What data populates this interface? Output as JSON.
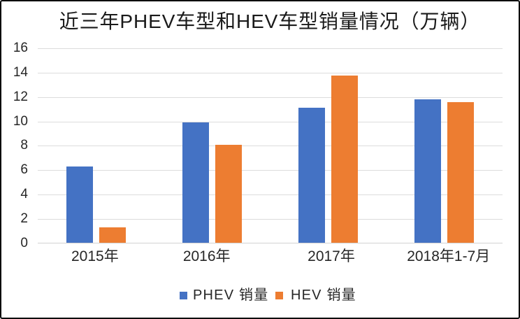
{
  "chart_data": {
    "type": "bar",
    "title": "近三年PHEV车型和HEV车型销量情况（万辆）",
    "categories": [
      "2015年",
      "2016年",
      "2017年",
      "2018年1-7月"
    ],
    "series": [
      {
        "name": "PHEV 销量",
        "color": "#4472c4",
        "values": [
          6.3,
          9.9,
          11.1,
          11.8
        ]
      },
      {
        "name": "HEV 销量",
        "color": "#ed7d31",
        "values": [
          1.3,
          8.1,
          13.8,
          11.6
        ]
      }
    ],
    "ylim": [
      0,
      16
    ],
    "ytick_step": 2,
    "ytick_labels": [
      "0",
      "2",
      "4",
      "6",
      "8",
      "10",
      "12",
      "14",
      "16"
    ],
    "grid": "horizontal",
    "legend_position": "bottom",
    "xlabel": "",
    "ylabel": ""
  }
}
